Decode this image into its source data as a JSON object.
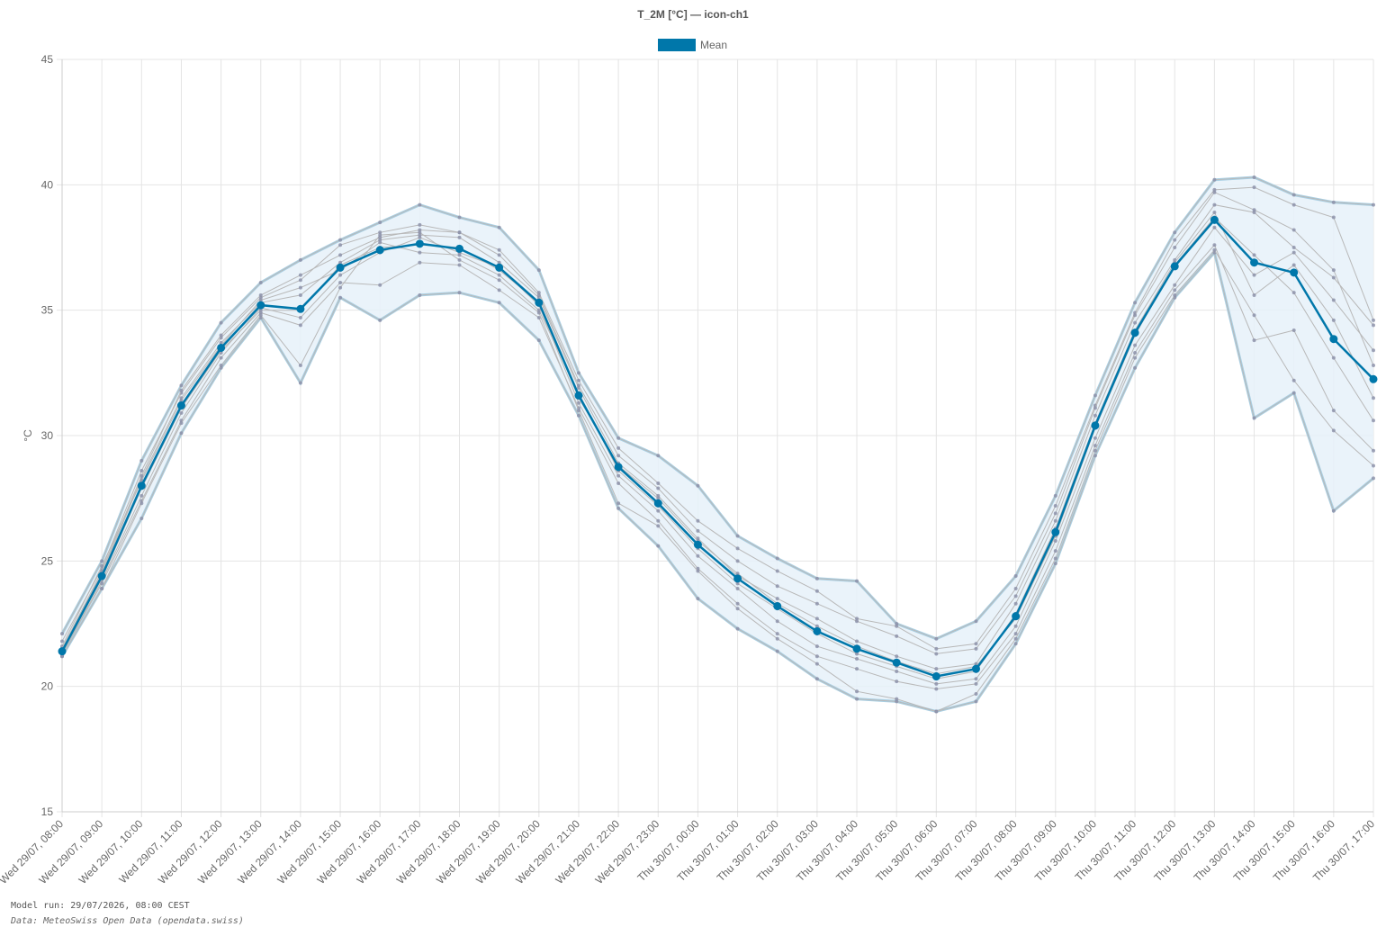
{
  "colors": {
    "mean": "#0077aa",
    "band_fill": "#e6f1f9",
    "band_edge": "#a9cfe3",
    "member": "#b8b8b8",
    "member_point": "#8a8fa8",
    "grid": "#e4e4e4"
  },
  "footer": {
    "model_run": "Model run: 29/07/2026, 08:00 CEST",
    "source": "Data: MeteoSwiss Open Data (opendata.swiss)"
  },
  "chart_data": {
    "type": "line",
    "title": "T_2M [°C] — icon-ch1",
    "ylabel": "°C",
    "xlabel": "",
    "ylim": [
      15,
      45
    ],
    "yticks": [
      15,
      20,
      25,
      30,
      35,
      40,
      45
    ],
    "grid": true,
    "legend": {
      "placement": "top-center",
      "entries": [
        "Mean"
      ]
    },
    "x": [
      "Wed 29/07, 08:00",
      "Wed 29/07, 09:00",
      "Wed 29/07, 10:00",
      "Wed 29/07, 11:00",
      "Wed 29/07, 12:00",
      "Wed 29/07, 13:00",
      "Wed 29/07, 14:00",
      "Wed 29/07, 15:00",
      "Wed 29/07, 16:00",
      "Wed 29/07, 17:00",
      "Wed 29/07, 18:00",
      "Wed 29/07, 19:00",
      "Wed 29/07, 20:00",
      "Wed 29/07, 21:00",
      "Wed 29/07, 22:00",
      "Wed 29/07, 23:00",
      "Thu 30/07, 00:00",
      "Thu 30/07, 01:00",
      "Thu 30/07, 02:00",
      "Thu 30/07, 03:00",
      "Thu 30/07, 04:00",
      "Thu 30/07, 05:00",
      "Thu 30/07, 06:00",
      "Thu 30/07, 07:00",
      "Thu 30/07, 08:00",
      "Thu 30/07, 09:00",
      "Thu 30/07, 10:00",
      "Thu 30/07, 11:00",
      "Thu 30/07, 12:00",
      "Thu 30/07, 13:00",
      "Thu 30/07, 14:00",
      "Thu 30/07, 15:00",
      "Thu 30/07, 16:00",
      "Thu 30/07, 17:00"
    ],
    "series": [
      {
        "name": "Mean",
        "values": [
          21.4,
          24.4,
          28.0,
          31.2,
          33.5,
          35.2,
          35.05,
          36.7,
          37.4,
          37.65,
          37.45,
          36.7,
          35.3,
          31.6,
          28.75,
          27.3,
          25.65,
          24.3,
          23.2,
          22.2,
          21.5,
          20.95,
          20.4,
          20.7,
          22.8,
          26.15,
          30.4,
          34.1,
          36.75,
          38.6,
          36.9,
          36.5,
          33.85,
          32.25
        ]
      },
      {
        "values": [
          22.1,
          25.0,
          29.0,
          32.0,
          34.5,
          36.1,
          37.0,
          37.8,
          38.5,
          39.2,
          38.7,
          38.3,
          36.6,
          32.5,
          29.9,
          29.2,
          28.0,
          26.0,
          25.1,
          24.3,
          24.2,
          22.5,
          21.9,
          22.6,
          24.4,
          27.6,
          31.6,
          35.3,
          38.1,
          40.2,
          40.3,
          39.6,
          39.3,
          39.2
        ]
      },
      {
        "values": [
          21.2,
          23.9,
          26.7,
          30.1,
          32.7,
          34.7,
          32.1,
          35.5,
          34.6,
          35.6,
          35.7,
          35.3,
          33.8,
          30.8,
          27.1,
          25.6,
          23.5,
          22.3,
          21.4,
          20.3,
          19.5,
          19.4,
          19.0,
          19.4,
          21.7,
          24.9,
          29.2,
          32.7,
          35.5,
          37.3,
          30.7,
          31.7,
          27.0,
          28.3
        ]
      },
      {
        "values": [
          21.8,
          24.7,
          28.6,
          31.7,
          33.9,
          35.5,
          36.2,
          37.6,
          38.1,
          38.4,
          38.1,
          37.4,
          35.7,
          32.2,
          29.5,
          28.1,
          26.6,
          25.5,
          24.6,
          23.8,
          22.7,
          22.4,
          21.5,
          21.7,
          23.9,
          27.2,
          31.2,
          34.9,
          37.8,
          39.8,
          39.9,
          39.2,
          38.7,
          34.6
        ]
      },
      {
        "values": [
          21.5,
          24.5,
          28.3,
          31.5,
          33.7,
          35.3,
          35.6,
          36.9,
          37.8,
          38.0,
          37.9,
          36.9,
          35.5,
          31.9,
          28.9,
          27.6,
          25.9,
          24.4,
          23.5,
          22.7,
          21.8,
          21.2,
          20.7,
          20.9,
          23.3,
          26.6,
          30.8,
          34.5,
          37.0,
          39.2,
          38.9,
          37.5,
          36.3,
          34.4
        ]
      },
      {
        "values": [
          21.3,
          24.2,
          27.6,
          30.9,
          33.3,
          35.1,
          34.7,
          36.4,
          37.3,
          37.9,
          37.3,
          36.7,
          35.2,
          31.3,
          28.4,
          27.0,
          25.2,
          23.9,
          22.6,
          21.6,
          21.1,
          20.6,
          20.1,
          20.3,
          22.4,
          25.8,
          29.9,
          33.6,
          36.0,
          38.3,
          36.4,
          37.3,
          35.4,
          33.4
        ]
      },
      {
        "values": [
          21.6,
          24.8,
          28.2,
          31.4,
          33.6,
          35.4,
          35.9,
          36.6,
          37.7,
          37.3,
          37.2,
          36.4,
          35.0,
          31.7,
          28.6,
          27.2,
          25.5,
          24.1,
          23.1,
          22.1,
          21.3,
          20.8,
          20.3,
          20.6,
          22.9,
          26.3,
          30.5,
          34.2,
          36.9,
          38.9,
          35.6,
          36.8,
          34.6,
          31.5
        ]
      },
      {
        "values": [
          21.4,
          24.3,
          27.9,
          31.1,
          33.4,
          35.0,
          35.0,
          36.8,
          37.5,
          37.6,
          37.5,
          36.6,
          35.3,
          31.5,
          28.8,
          27.5,
          25.8,
          24.5,
          23.3,
          22.4,
          21.6,
          21.0,
          20.5,
          20.8,
          22.7,
          26.0,
          30.3,
          34.0,
          36.8,
          38.7,
          37.2,
          35.7,
          33.1,
          30.6
        ]
      },
      {
        "values": [
          21.3,
          24.1,
          27.4,
          30.6,
          33.1,
          34.9,
          34.4,
          36.1,
          36.0,
          36.9,
          36.8,
          35.8,
          34.7,
          31.1,
          28.1,
          26.6,
          24.7,
          23.3,
          22.1,
          21.2,
          20.7,
          20.2,
          19.9,
          20.1,
          22.1,
          25.4,
          29.6,
          33.3,
          35.8,
          37.6,
          33.8,
          34.2,
          31.0,
          29.4
        ]
      },
      {
        "values": [
          21.2,
          23.9,
          27.3,
          30.5,
          32.8,
          34.8,
          32.8,
          35.9,
          38.0,
          38.1,
          37.0,
          36.2,
          34.9,
          31.0,
          27.3,
          26.4,
          24.6,
          23.1,
          21.9,
          20.9,
          19.8,
          19.5,
          19.0,
          19.7,
          21.9,
          25.1,
          29.4,
          33.1,
          35.6,
          37.4,
          34.8,
          32.2,
          30.2,
          28.8
        ]
      },
      {
        "values": [
          21.5,
          24.6,
          28.4,
          31.8,
          34.0,
          35.6,
          36.4,
          37.2,
          37.9,
          38.2,
          38.1,
          37.2,
          35.6,
          32.0,
          29.2,
          27.9,
          26.2,
          25.0,
          24.0,
          23.3,
          22.6,
          22.0,
          21.3,
          21.5,
          23.6,
          26.9,
          31.1,
          34.8,
          37.5,
          39.7,
          39.0,
          38.2,
          36.6,
          32.8
        ]
      }
    ]
  }
}
